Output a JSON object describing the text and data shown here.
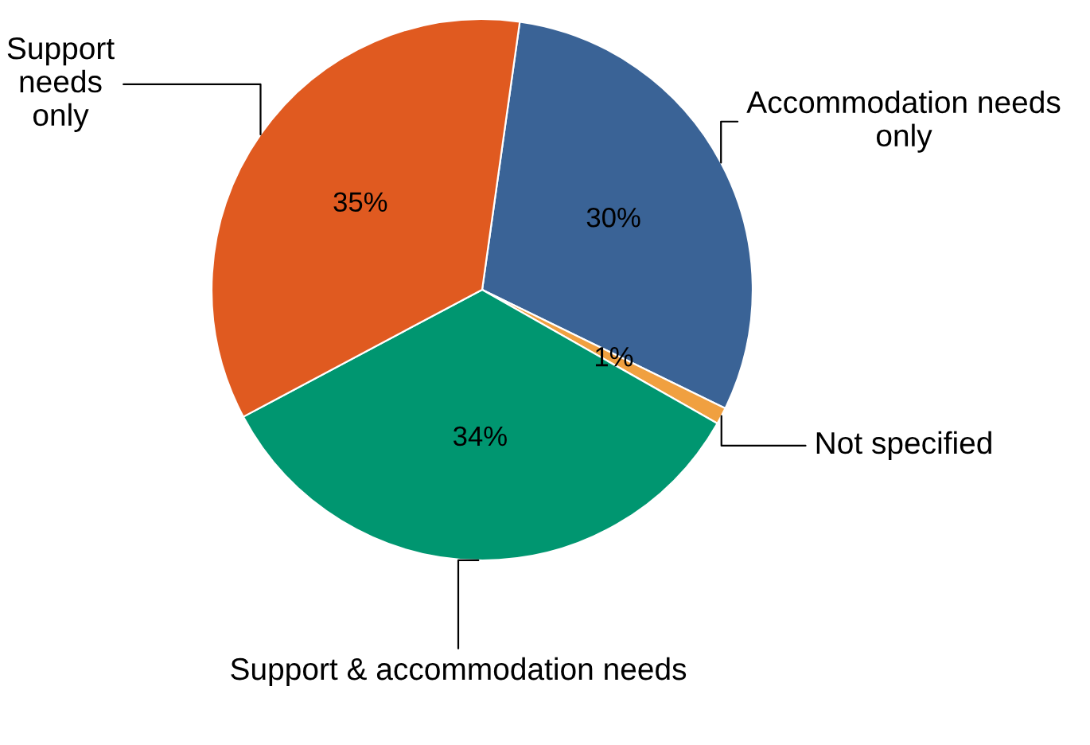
{
  "chart_data": {
    "type": "pie",
    "categories": [
      "Accommodation needs only",
      "Not specified",
      "Support & accommodation needs",
      "Support needs only"
    ],
    "values": [
      30,
      1,
      34,
      35
    ],
    "colors": [
      "#3a6396",
      "#f0a040",
      "#009670",
      "#e05a20"
    ],
    "value_labels": [
      "30%",
      "1%",
      "34%",
      "35%"
    ]
  }
}
